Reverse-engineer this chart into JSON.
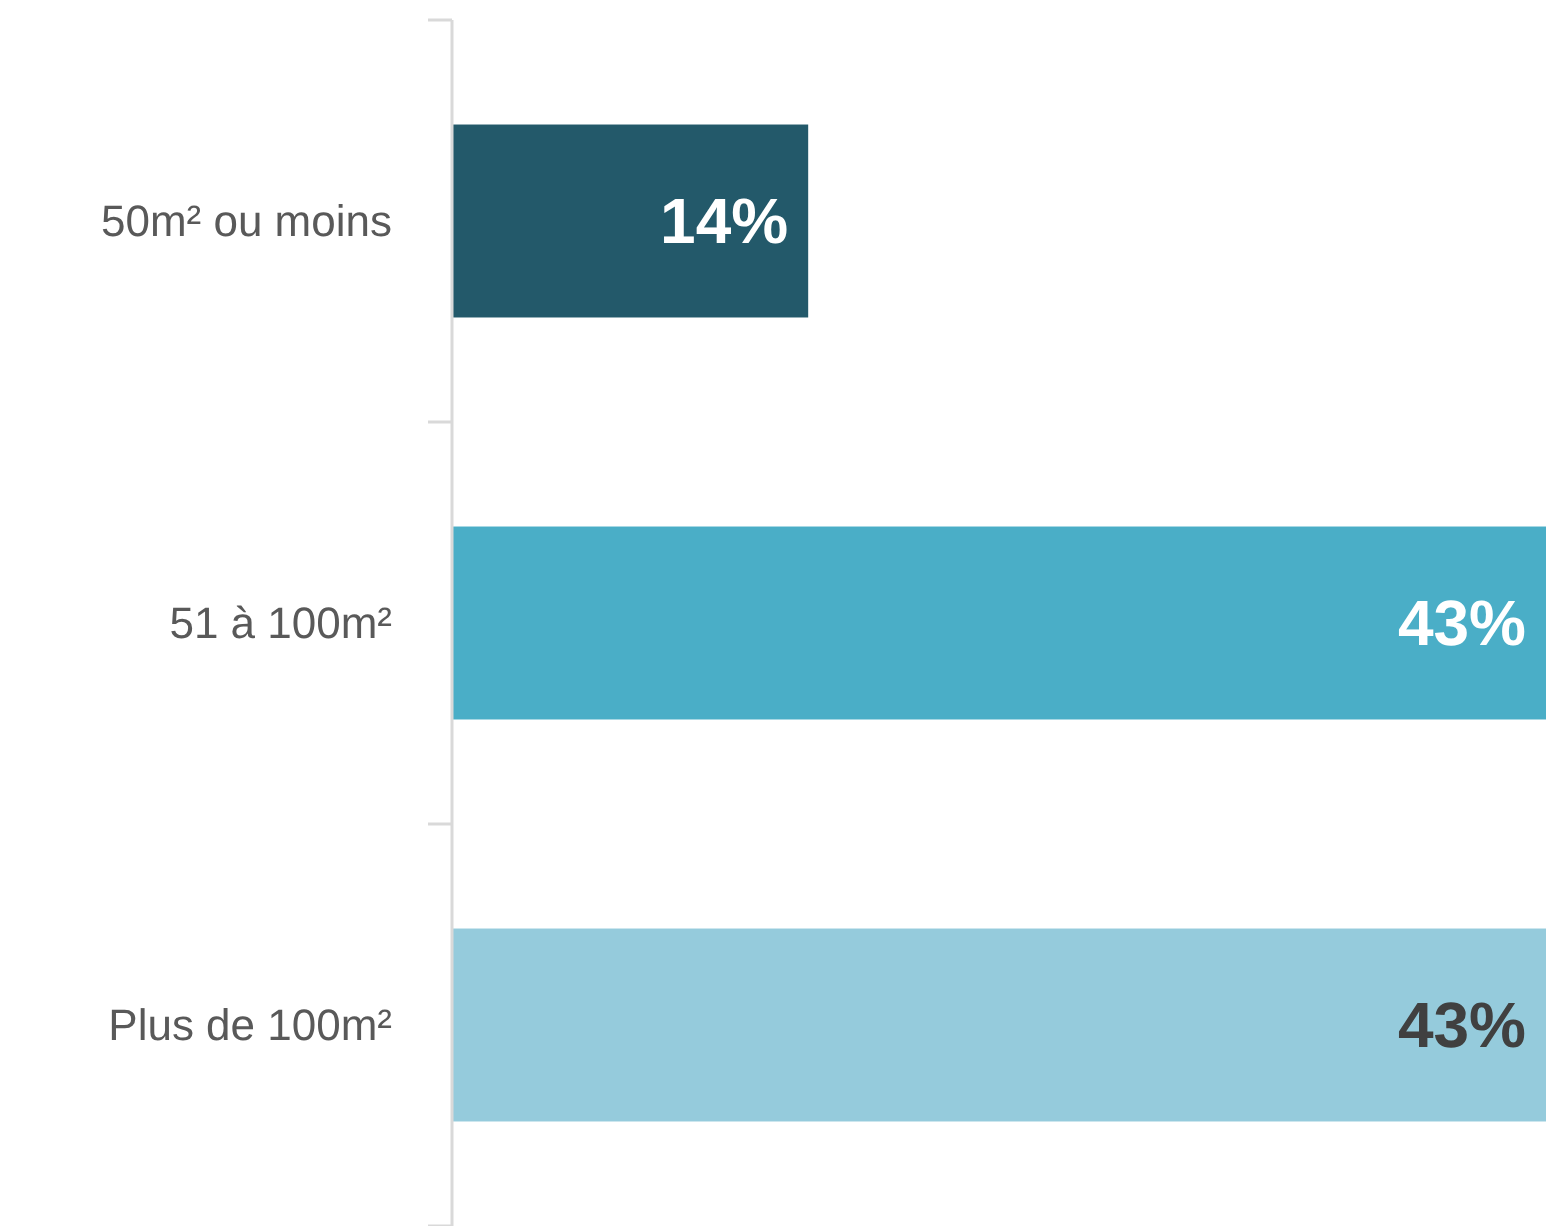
{
  "chart_data": {
    "type": "bar",
    "orientation": "horizontal",
    "categories": [
      "50m² ou moins",
      "51 à 100m²",
      "Plus de 100m²"
    ],
    "values": [
      14,
      43,
      43
    ],
    "colors": [
      "#23596a",
      "#4aaec7",
      "#95cbdc"
    ],
    "value_labels": [
      "14%",
      "43%",
      "43%"
    ],
    "xlim": [
      0,
      43
    ],
    "tick_labels": "y"
  }
}
